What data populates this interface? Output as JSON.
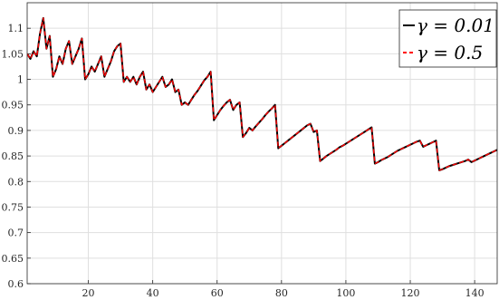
{
  "chart_data": {
    "type": "line",
    "title": "",
    "xlabel": "",
    "ylabel": "",
    "xlim": [
      1,
      147
    ],
    "ylim": [
      0.6,
      1.15
    ],
    "grid": true,
    "legend_position": "top-right",
    "x_ticks": [
      20,
      40,
      60,
      80,
      100,
      120,
      140
    ],
    "y_ticks": [
      0.6,
      0.65,
      0.7,
      0.75,
      0.8,
      0.85,
      0.9,
      0.95,
      1,
      1.05,
      1.1
    ],
    "x_tick_labels": [
      "20",
      "40",
      "60",
      "80",
      "100",
      "120",
      "140"
    ],
    "y_tick_labels": [
      "0.6",
      "0.65",
      "0.7",
      "0.75",
      "0.8",
      "0.85",
      "0.9",
      "0.95",
      "1",
      "1.05",
      "1.1"
    ],
    "x": [
      1,
      2,
      3,
      4,
      5,
      6,
      7,
      8,
      9,
      10,
      11,
      12,
      13,
      14,
      15,
      16,
      17,
      18,
      19,
      20,
      21,
      22,
      23,
      24,
      25,
      26,
      27,
      28,
      29,
      30,
      31,
      32,
      33,
      34,
      35,
      36,
      37,
      38,
      39,
      40,
      41,
      42,
      43,
      44,
      45,
      46,
      47,
      48,
      49,
      50,
      51,
      52,
      53,
      54,
      55,
      56,
      57,
      58,
      59,
      60,
      61,
      62,
      63,
      64,
      65,
      66,
      67,
      68,
      69,
      70,
      71,
      72,
      73,
      74,
      75,
      76,
      77,
      78,
      79,
      80,
      81,
      82,
      83,
      84,
      85,
      86,
      87,
      88,
      89,
      90,
      91,
      92,
      93,
      94,
      95,
      96,
      97,
      98,
      99,
      100,
      101,
      102,
      103,
      104,
      105,
      106,
      107,
      108,
      109,
      110,
      111,
      112,
      113,
      114,
      115,
      116,
      117,
      118,
      119,
      120,
      121,
      122,
      123,
      124,
      125,
      126,
      127,
      128,
      129,
      130,
      131,
      132,
      133,
      134,
      135,
      136,
      137,
      138,
      139,
      140,
      141,
      142,
      143,
      144,
      145,
      146,
      147
    ],
    "series": [
      {
        "name": "γ = 0.01",
        "color": "#000000",
        "dash": "solid",
        "values": [
          1.05,
          1.04,
          1.055,
          1.045,
          1.09,
          1.12,
          1.06,
          1.085,
          1.005,
          1.02,
          1.045,
          1.03,
          1.06,
          1.075,
          1.03,
          1.045,
          1.06,
          1.08,
          1.0,
          1.01,
          1.025,
          1.015,
          1.03,
          1.045,
          1.005,
          1.02,
          1.035,
          1.055,
          1.065,
          1.07,
          0.995,
          1.005,
          0.995,
          1.005,
          0.99,
          1.005,
          1.015,
          0.98,
          0.99,
          0.975,
          0.985,
          0.995,
          1.005,
          0.985,
          0.99,
          1.0,
          0.975,
          0.98,
          0.95,
          0.955,
          0.95,
          0.96,
          0.97,
          0.978,
          0.988,
          0.998,
          1.005,
          1.015,
          0.92,
          0.93,
          0.94,
          0.948,
          0.955,
          0.96,
          0.94,
          0.95,
          0.955,
          0.887,
          0.895,
          0.905,
          0.9,
          0.908,
          0.915,
          0.922,
          0.93,
          0.937,
          0.943,
          0.95,
          0.865,
          0.87,
          0.875,
          0.88,
          0.885,
          0.89,
          0.895,
          0.9,
          0.905,
          0.91,
          0.913,
          0.897,
          0.9,
          0.84,
          0.845,
          0.85,
          0.854,
          0.858,
          0.862,
          0.867,
          0.87,
          0.874,
          0.878,
          0.882,
          0.886,
          0.89,
          0.894,
          0.898,
          0.902,
          0.906,
          0.835,
          0.838,
          0.842,
          0.845,
          0.848,
          0.852,
          0.856,
          0.86,
          0.863,
          0.866,
          0.869,
          0.872,
          0.875,
          0.878,
          0.88,
          0.868,
          0.871,
          0.874,
          0.877,
          0.88,
          0.822,
          0.824,
          0.827,
          0.83,
          0.832,
          0.834,
          0.836,
          0.838,
          0.84,
          0.843,
          0.838,
          0.841,
          0.844,
          0.847,
          0.85,
          0.853,
          0.856,
          0.859,
          0.862
        ]
      },
      {
        "name": "γ = 0.5",
        "color": "#ff0000",
        "dash": "dashed",
        "values": [
          1.05,
          1.04,
          1.055,
          1.045,
          1.09,
          1.12,
          1.06,
          1.085,
          1.005,
          1.02,
          1.045,
          1.03,
          1.06,
          1.075,
          1.03,
          1.045,
          1.06,
          1.08,
          1.0,
          1.01,
          1.025,
          1.015,
          1.03,
          1.045,
          1.005,
          1.02,
          1.035,
          1.055,
          1.065,
          1.07,
          0.995,
          1.005,
          0.995,
          1.005,
          0.99,
          1.005,
          1.015,
          0.98,
          0.99,
          0.975,
          0.985,
          0.995,
          1.005,
          0.985,
          0.99,
          1.0,
          0.975,
          0.98,
          0.95,
          0.955,
          0.95,
          0.96,
          0.97,
          0.978,
          0.988,
          0.998,
          1.005,
          1.015,
          0.92,
          0.93,
          0.94,
          0.948,
          0.955,
          0.96,
          0.94,
          0.95,
          0.955,
          0.887,
          0.895,
          0.905,
          0.9,
          0.908,
          0.915,
          0.922,
          0.93,
          0.937,
          0.943,
          0.95,
          0.865,
          0.87,
          0.875,
          0.88,
          0.885,
          0.89,
          0.895,
          0.9,
          0.905,
          0.91,
          0.913,
          0.897,
          0.9,
          0.84,
          0.845,
          0.85,
          0.854,
          0.858,
          0.862,
          0.867,
          0.87,
          0.874,
          0.878,
          0.882,
          0.886,
          0.89,
          0.894,
          0.898,
          0.902,
          0.906,
          0.835,
          0.838,
          0.842,
          0.845,
          0.848,
          0.852,
          0.856,
          0.86,
          0.863,
          0.866,
          0.869,
          0.872,
          0.875,
          0.878,
          0.88,
          0.868,
          0.871,
          0.874,
          0.877,
          0.88,
          0.822,
          0.824,
          0.827,
          0.83,
          0.832,
          0.834,
          0.836,
          0.838,
          0.84,
          0.843,
          0.838,
          0.841,
          0.844,
          0.847,
          0.85,
          0.853,
          0.856,
          0.859,
          0.862
        ]
      }
    ]
  }
}
